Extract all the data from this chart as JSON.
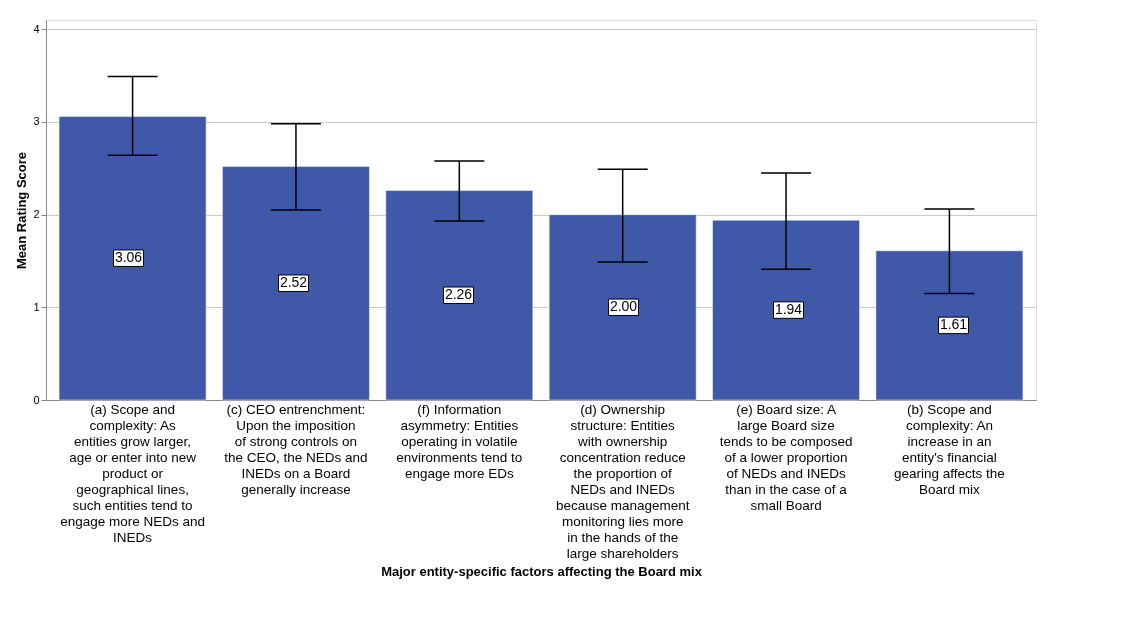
{
  "chart_data": {
    "type": "bar",
    "xlabel": "Major entity-specific factors affecting the Board mix",
    "ylabel": "Mean Rating Score",
    "categories": [
      "(a) Scope and complexity: As entities grow larger, age or enter into new product or geographical lines, such entities tend to engage more NEDs and INEDs",
      "(c) CEO entrenchment: Upon the imposition of strong controls on the CEO, the NEDs and INEDs on a Board generally increase",
      "(f) Information asymmetry: Entities operating in volatile environments tend to engage more EDs",
      "(d) Ownership structure: Entities with ownership concentration reduce the proportion of NEDs and INEDs because management monitoring lies more in the hands of the large shareholders",
      "(e) Board size: A large Board size tends to be composed of a lower proportion of NEDs and INEDs than in the case of a small Board",
      "(b) Scope and complexity: An increase in an entity's financial gearing affects the Board mix"
    ],
    "values": [
      3.06,
      2.52,
      2.26,
      2.0,
      1.94,
      1.61
    ],
    "errors": [
      [
        2.64,
        3.49
      ],
      [
        2.05,
        2.98
      ],
      [
        1.93,
        2.58
      ],
      [
        1.49,
        2.49
      ],
      [
        1.41,
        2.45
      ],
      [
        1.15,
        2.06
      ]
    ],
    "value_labels": [
      "3.06",
      "2.52",
      "2.26",
      "2.00",
      "1.94",
      "1.61"
    ],
    "color": "#3f58a8",
    "ylim": [
      0,
      4.1
    ],
    "yticks": [
      0,
      1,
      2,
      3,
      4
    ],
    "grid": "y"
  }
}
